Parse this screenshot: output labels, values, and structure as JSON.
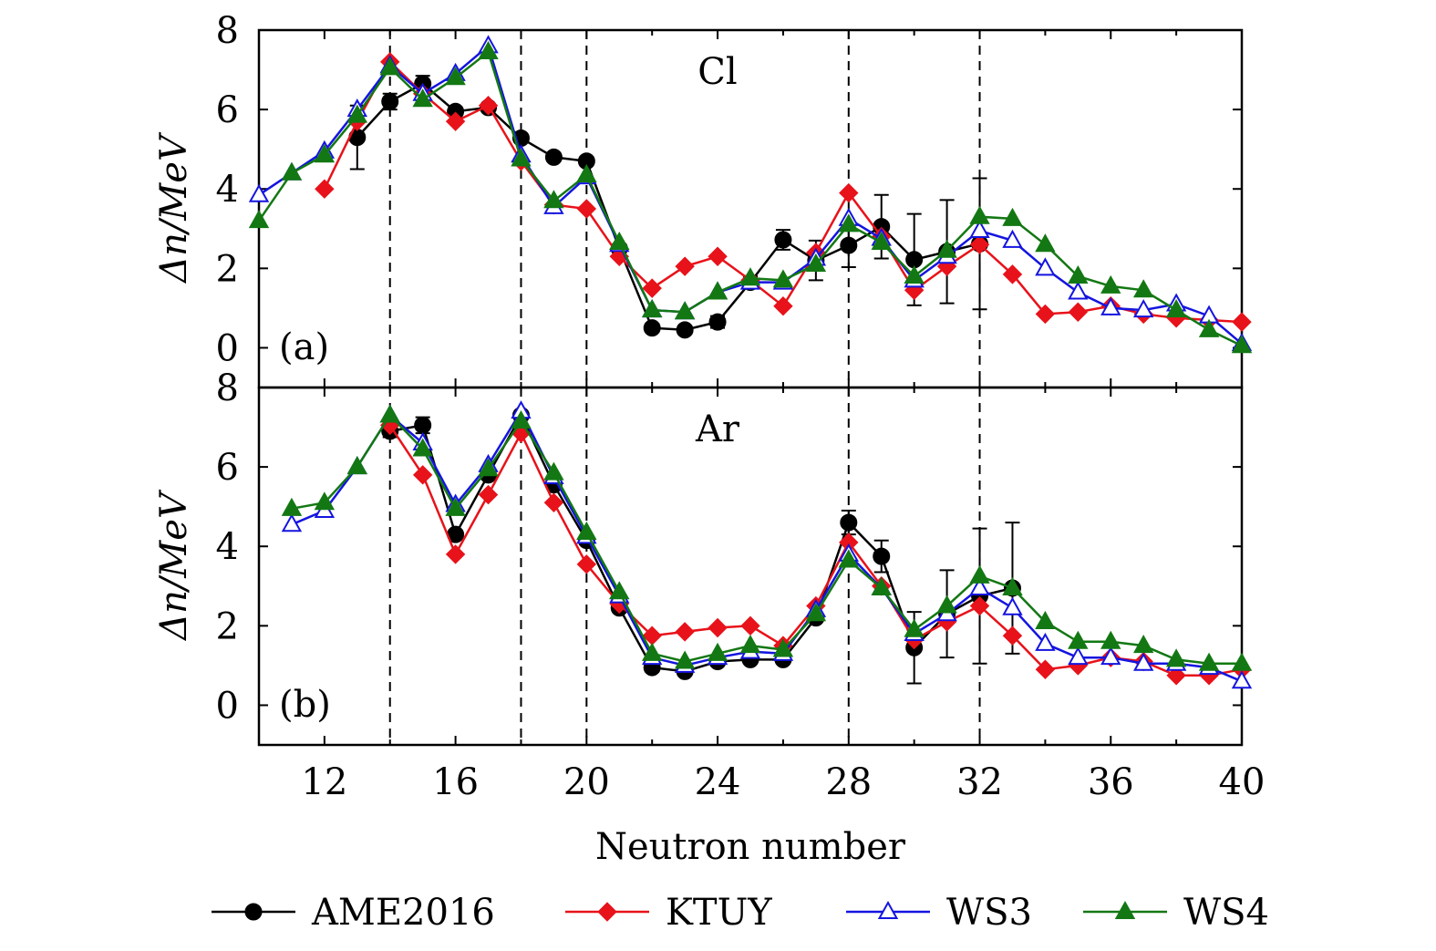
{
  "chart_data": [
    {
      "type": "line",
      "panel_label": "(a)",
      "element_label": "Cl",
      "ylabel": "Δn/MeV",
      "xlim": [
        10,
        40
      ],
      "ylim": [
        -1,
        8
      ],
      "yticks": [
        0,
        2,
        4,
        6,
        8
      ],
      "xticks": [
        12,
        16,
        20,
        24,
        28,
        32,
        36,
        40
      ],
      "vlines": [
        14,
        18,
        20,
        28,
        32
      ],
      "series": [
        {
          "name": "AME2016",
          "color": "#000000",
          "marker": "circle",
          "x": [
            13,
            14,
            15,
            16,
            17,
            18,
            19,
            20,
            21,
            22,
            23,
            24,
            25,
            26,
            27,
            28,
            29,
            30,
            31,
            32
          ],
          "y": [
            5.3,
            6.2,
            6.65,
            5.95,
            6.05,
            5.28,
            4.8,
            4.7,
            2.5,
            0.5,
            0.45,
            0.65,
            1.65,
            2.72,
            2.2,
            2.58,
            3.05,
            2.22,
            2.42,
            2.62
          ],
          "err": [
            0.8,
            0.2,
            0.2,
            0.1,
            0.1,
            0.1,
            0.1,
            0.1,
            0.1,
            0.1,
            0.1,
            0.15,
            0.15,
            0.25,
            0.5,
            0.55,
            0.8,
            1.15,
            1.3,
            1.65
          ]
        },
        {
          "name": "KTUY",
          "color": "#e8121a",
          "marker": "diamond",
          "x": [
            12,
            13,
            14,
            15,
            16,
            17,
            18,
            19,
            20,
            21,
            22,
            23,
            24,
            25,
            26,
            27,
            28,
            29,
            30,
            31,
            32,
            33,
            34,
            35,
            36,
            37,
            38,
            39,
            40
          ],
          "y": [
            4.0,
            5.7,
            7.2,
            6.4,
            5.7,
            6.1,
            4.7,
            3.6,
            3.5,
            2.3,
            1.5,
            2.05,
            2.3,
            1.7,
            1.05,
            2.4,
            3.9,
            2.8,
            1.45,
            2.05,
            2.6,
            1.85,
            0.85,
            0.9,
            1.05,
            0.85,
            0.75,
            0.7,
            0.65
          ]
        },
        {
          "name": "WS3",
          "color": "#1414e0",
          "marker": "triangle-open",
          "x": [
            10,
            11,
            12,
            13,
            14,
            15,
            16,
            17,
            18,
            19,
            20,
            21,
            22,
            23,
            24,
            25,
            26,
            27,
            28,
            29,
            30,
            31,
            32,
            33,
            34,
            35,
            36,
            37,
            38,
            39,
            40
          ],
          "y": [
            3.85,
            4.4,
            4.95,
            6.0,
            7.1,
            6.4,
            6.9,
            7.6,
            4.85,
            3.55,
            4.3,
            2.6,
            0.95,
            0.9,
            1.4,
            1.65,
            1.65,
            2.25,
            3.25,
            2.75,
            1.7,
            2.3,
            2.95,
            2.7,
            2.0,
            1.4,
            1.0,
            0.95,
            1.1,
            0.8,
            0.1
          ]
        },
        {
          "name": "WS4",
          "color": "#137813",
          "marker": "triangle-filled",
          "x": [
            10,
            11,
            12,
            13,
            14,
            15,
            16,
            17,
            18,
            19,
            20,
            21,
            22,
            23,
            24,
            25,
            26,
            27,
            28,
            29,
            30,
            31,
            32,
            33,
            34,
            35,
            36,
            37,
            38,
            39,
            40
          ],
          "y": [
            3.2,
            4.4,
            4.85,
            5.85,
            7.05,
            6.25,
            6.8,
            7.45,
            4.75,
            3.7,
            4.35,
            2.65,
            0.95,
            0.9,
            1.4,
            1.75,
            1.7,
            2.1,
            3.1,
            2.65,
            1.8,
            2.45,
            3.3,
            3.25,
            2.6,
            1.8,
            1.55,
            1.45,
            0.95,
            0.45,
            0.05
          ]
        }
      ]
    },
    {
      "type": "line",
      "panel_label": "(b)",
      "element_label": "Ar",
      "ylabel": "Δn/MeV",
      "xlabel": "Neutron number",
      "xlim": [
        10,
        40
      ],
      "ylim": [
        -1,
        8
      ],
      "yticks": [
        0,
        2,
        4,
        6,
        8
      ],
      "xticks": [
        12,
        16,
        20,
        24,
        28,
        32,
        36,
        40
      ],
      "vlines": [
        14,
        18,
        20,
        28,
        32
      ],
      "series": [
        {
          "name": "AME2016",
          "color": "#000000",
          "marker": "circle",
          "x": [
            14,
            15,
            16,
            17,
            18,
            19,
            20,
            21,
            22,
            23,
            24,
            25,
            26,
            27,
            28,
            29,
            30,
            31,
            32,
            33
          ],
          "y": [
            6.9,
            7.05,
            4.3,
            5.8,
            7.3,
            5.55,
            4.15,
            2.45,
            0.95,
            0.85,
            1.1,
            1.15,
            1.15,
            2.2,
            4.6,
            3.75,
            1.45,
            2.3,
            2.75,
            2.95
          ],
          "err": [
            0.15,
            0.2,
            0.1,
            0.1,
            0.1,
            0.1,
            0.1,
            0.1,
            0.1,
            0.1,
            0.1,
            0.1,
            0.1,
            0.1,
            0.3,
            0.4,
            0.9,
            1.1,
            1.7,
            1.65
          ]
        },
        {
          "name": "KTUY",
          "color": "#e8121a",
          "marker": "diamond",
          "x": [
            14,
            15,
            16,
            17,
            18,
            19,
            20,
            21,
            22,
            23,
            24,
            25,
            26,
            27,
            28,
            29,
            30,
            31,
            32,
            33,
            34,
            35,
            36,
            37,
            38,
            39,
            40
          ],
          "y": [
            7.05,
            5.8,
            3.8,
            5.3,
            6.85,
            5.1,
            3.55,
            2.55,
            1.75,
            1.85,
            1.95,
            2.0,
            1.5,
            2.5,
            4.1,
            3.0,
            1.65,
            2.1,
            2.5,
            1.75,
            0.9,
            1.0,
            1.2,
            1.1,
            0.75,
            0.75,
            0.9
          ]
        },
        {
          "name": "WS3",
          "color": "#1414e0",
          "marker": "triangle-open",
          "x": [
            11,
            12,
            13,
            14,
            15,
            16,
            17,
            18,
            19,
            20,
            21,
            22,
            23,
            24,
            25,
            26,
            27,
            28,
            29,
            30,
            31,
            32,
            33,
            34,
            35,
            36,
            37,
            38,
            39,
            40
          ],
          "y": [
            4.55,
            4.9,
            6.0,
            7.3,
            6.6,
            5.05,
            6.05,
            7.4,
            5.75,
            4.25,
            2.75,
            1.2,
            1.0,
            1.2,
            1.35,
            1.3,
            2.4,
            3.8,
            2.95,
            1.8,
            2.3,
            2.95,
            2.45,
            1.55,
            1.2,
            1.2,
            1.05,
            1.05,
            0.95,
            0.6
          ]
        },
        {
          "name": "WS4",
          "color": "#137813",
          "marker": "triangle-filled",
          "x": [
            11,
            12,
            13,
            14,
            15,
            16,
            17,
            18,
            19,
            20,
            21,
            22,
            23,
            24,
            25,
            26,
            27,
            28,
            29,
            30,
            31,
            32,
            33,
            34,
            35,
            36,
            37,
            38,
            39,
            40
          ],
          "y": [
            4.95,
            5.1,
            6.0,
            7.3,
            6.45,
            4.95,
            5.95,
            7.15,
            5.85,
            4.35,
            2.85,
            1.3,
            1.1,
            1.3,
            1.5,
            1.4,
            2.3,
            3.65,
            2.95,
            1.9,
            2.5,
            3.25,
            2.95,
            2.1,
            1.6,
            1.6,
            1.5,
            1.15,
            1.05,
            1.05
          ]
        }
      ]
    }
  ],
  "legend": [
    {
      "label": "AME2016",
      "color": "#000000",
      "marker": "circle"
    },
    {
      "label": "KTUY",
      "color": "#e8121a",
      "marker": "diamond"
    },
    {
      "label": "WS3",
      "color": "#1414e0",
      "marker": "triangle-open"
    },
    {
      "label": "WS4",
      "color": "#137813",
      "marker": "triangle-filled"
    }
  ]
}
